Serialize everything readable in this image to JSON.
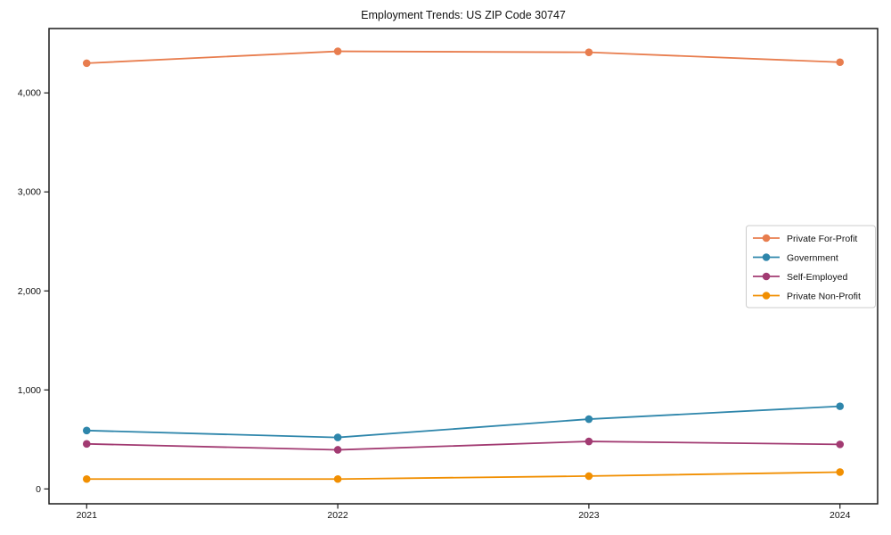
{
  "chart_data": {
    "type": "line",
    "title": "Employment Trends: US ZIP Code 30747",
    "xlabel": "",
    "ylabel": "",
    "x": [
      2021,
      2022,
      2023,
      2024
    ],
    "x_tick_labels": [
      "2021",
      "2022",
      "2023",
      "2024"
    ],
    "y_ticks": [
      {
        "value": 0,
        "label": "0"
      },
      {
        "value": 1000,
        "label": "1,000"
      },
      {
        "value": 2000,
        "label": "2,000"
      },
      {
        "value": 3000,
        "label": "3,000"
      },
      {
        "value": 4000,
        "label": "4,000"
      }
    ],
    "xlim": [
      2020.85,
      2024.15
    ],
    "ylim": [
      -150,
      4650
    ],
    "grid": false,
    "legend_position": "center right",
    "series": [
      {
        "name": "Private For-Profit",
        "color": "#E87D4E",
        "values": [
          4300,
          4420,
          4410,
          4310
        ]
      },
      {
        "name": "Government",
        "color": "#2E86AB",
        "values": [
          590,
          520,
          705,
          835
        ]
      },
      {
        "name": "Self-Employed",
        "color": "#A23B72",
        "values": [
          455,
          395,
          480,
          450
        ]
      },
      {
        "name": "Private Non-Profit",
        "color": "#F18F01",
        "values": [
          100,
          100,
          130,
          170
        ]
      }
    ],
    "axis_color": "#1a1a1a",
    "legend_border_color": "#cccccc",
    "background_color": "#ffffff"
  }
}
